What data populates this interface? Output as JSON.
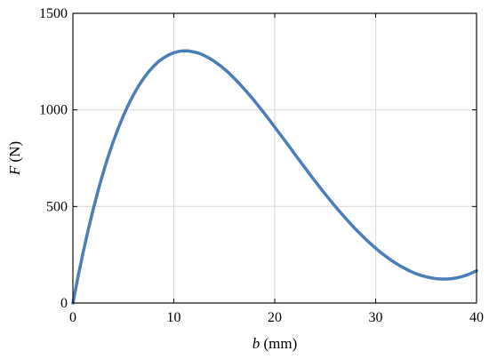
{
  "chart_data": {
    "type": "line",
    "title": "",
    "xlabel": {
      "var": "b",
      "unit": " (mm)"
    },
    "ylabel": {
      "var": "F",
      "unit": " (N)"
    },
    "xlim": [
      0,
      40
    ],
    "ylim": [
      0,
      1500
    ],
    "xticks": [
      0,
      10,
      20,
      30,
      40
    ],
    "yticks": [
      0,
      500,
      1000,
      1500
    ],
    "xtick_labels": [
      "0",
      "10",
      "20",
      "30",
      "40"
    ],
    "ytick_labels": [
      "0",
      "500",
      "1000",
      "1500"
    ],
    "grid": true,
    "legend": "none",
    "series": [
      {
        "color": "#4a7ebb",
        "x": [
          0,
          0.5,
          1,
          1.5,
          2,
          2.5,
          3,
          3.5,
          4,
          4.5,
          5,
          5.5,
          6,
          6.5,
          7,
          7.5,
          8,
          8.5,
          9,
          9.5,
          10,
          10.5,
          11,
          11.5,
          12,
          12.5,
          13,
          13.5,
          14,
          14.5,
          15,
          15.5,
          16,
          16.5,
          17,
          17.5,
          18,
          18.5,
          19,
          19.5,
          20,
          20.5,
          21,
          21.5,
          22,
          22.5,
          23,
          23.5,
          24,
          24.5,
          25,
          25.5,
          26,
          26.5,
          27,
          27.5,
          28,
          28.5,
          29,
          29.5,
          30,
          30.5,
          31,
          31.5,
          32,
          32.5,
          33,
          33.5,
          34,
          34.5,
          35,
          35.5,
          36,
          36.5,
          37,
          37.5,
          38,
          38.5,
          39,
          39.5,
          40
        ],
        "y": [
          0,
          134,
          259,
          375,
          483,
          583,
          675,
          759,
          836,
          906,
          970,
          1027,
          1078,
          1123,
          1163,
          1197,
          1226,
          1251,
          1270,
          1285,
          1296,
          1303,
          1306,
          1305,
          1300,
          1293,
          1282,
          1268,
          1252,
          1233,
          1212,
          1189,
          1163,
          1136,
          1107,
          1077,
          1046,
          1013,
          980,
          946,
          911,
          876,
          841,
          806,
          770,
          735,
          700,
          665,
          631,
          597,
          564,
          532,
          500,
          470,
          440,
          411,
          383,
          357,
          331,
          307,
          284,
          262,
          242,
          223,
          206,
          190,
          176,
          163,
          152,
          143,
          136,
          130,
          126,
          124,
          124,
          126,
          130,
          136,
          144,
          155,
          167
        ]
      }
    ]
  }
}
